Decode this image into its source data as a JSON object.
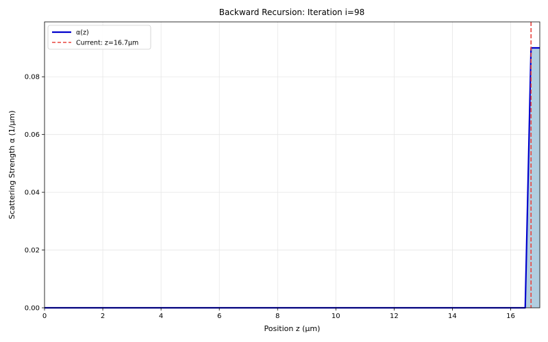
{
  "chart_data": {
    "type": "line",
    "title": "Backward Recursion: Iteration i=98",
    "xlabel": "Position z (μm)",
    "ylabel": "Scattering Strength α (1/μm)",
    "xlim": [
      0,
      17
    ],
    "ylim": [
      0,
      0.099
    ],
    "x_ticks": [
      0,
      2,
      4,
      6,
      8,
      10,
      12,
      14,
      16
    ],
    "y_ticks": [
      0.0,
      0.02,
      0.04,
      0.06,
      0.08
    ],
    "y_tick_labels": [
      "0.00",
      "0.02",
      "0.04",
      "0.06",
      "0.08"
    ],
    "grid": true,
    "legend_position": "top-left",
    "series": [
      {
        "name": "α(z)",
        "color": "#0000cc",
        "style": "solid",
        "fill_color": "#a9c9dd",
        "x": [
          0,
          16.5,
          16.7,
          17
        ],
        "y": [
          0,
          0,
          0.09,
          0.09
        ]
      }
    ],
    "annotations": [
      {
        "type": "vline",
        "name": "Current: z=16.7μm",
        "x": 16.7,
        "color": "#e8423c",
        "style": "dashed"
      }
    ]
  }
}
